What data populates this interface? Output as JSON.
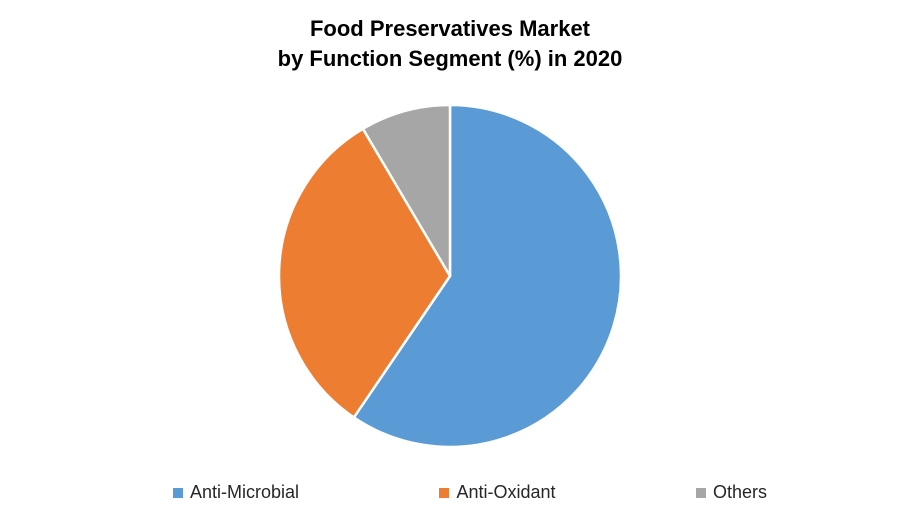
{
  "title": {
    "line1": "Food Preservatives Market",
    "line2": "by Function Segment (%) in 2020"
  },
  "chart_data": {
    "type": "pie",
    "title": "Food Preservatives Market by Function Segment (%) in 2020",
    "unit": "%",
    "categories": [
      "Anti-Microbial",
      "Anti-Oxidant",
      "Others"
    ],
    "values": [
      59.5,
      32,
      8.5
    ],
    "colors": [
      "#5B9BD5",
      "#ED7D31",
      "#A6A6A6"
    ],
    "start_angle_deg": 0,
    "direction": "clockwise",
    "slice_border_color": "#FFFFFF",
    "legend_position": "bottom",
    "background_color": "#FFFFFF",
    "data_labels": "none"
  }
}
